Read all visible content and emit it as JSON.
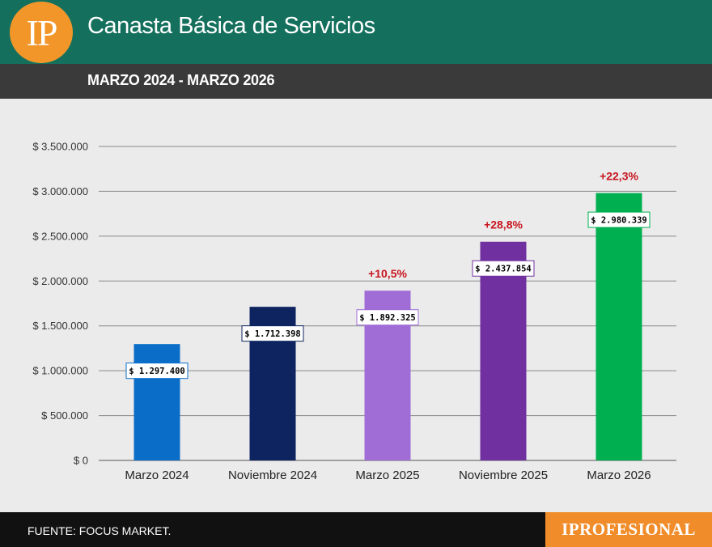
{
  "header": {
    "logo_text": "IP",
    "title": "Canasta Básica de Servicios",
    "subtitle": "MARZO 2024 - MARZO 2026"
  },
  "footer": {
    "source": "FUENTE: FOCUS MARKET.",
    "brand": "IPROFESIONAL"
  },
  "colors": {
    "header": "#14705d",
    "subheader": "#3a3a3a",
    "logo": "#f2962a",
    "brand": "#f08c2a",
    "percent_change": "#c8141e"
  },
  "chart_data": {
    "type": "bar",
    "categories": [
      "Marzo 2024",
      "Noviembre 2024",
      "Marzo 2025",
      "Noviembre 2025",
      "Marzo 2026"
    ],
    "values": [
      1297400,
      1712398,
      1892325,
      2437854,
      2980339
    ],
    "value_labels": [
      "$ 1.297.400",
      "$ 1.712.398",
      "$ 1.892.325",
      "$ 2.437.854",
      "$ 2.980.339"
    ],
    "percent_changes": [
      "",
      "",
      "+10,5%",
      "+28,8%",
      "+22,3%"
    ],
    "bar_colors": [
      "#0a6ec8",
      "#0d2460",
      "#a06dd6",
      "#7030a0",
      "#00b050"
    ],
    "ylim": [
      0,
      3500000
    ],
    "yticks": [
      0,
      500000,
      1000000,
      1500000,
      2000000,
      2500000,
      3000000,
      3500000
    ],
    "ytick_labels": [
      "$ 0",
      "$ 500.000",
      "$ 1.000.000",
      "$ 1.500.000",
      "$ 2.000.000",
      "$ 2.500.000",
      "$ 3.000.000",
      "$ 3.500.000"
    ],
    "grid": true,
    "legend": false
  }
}
